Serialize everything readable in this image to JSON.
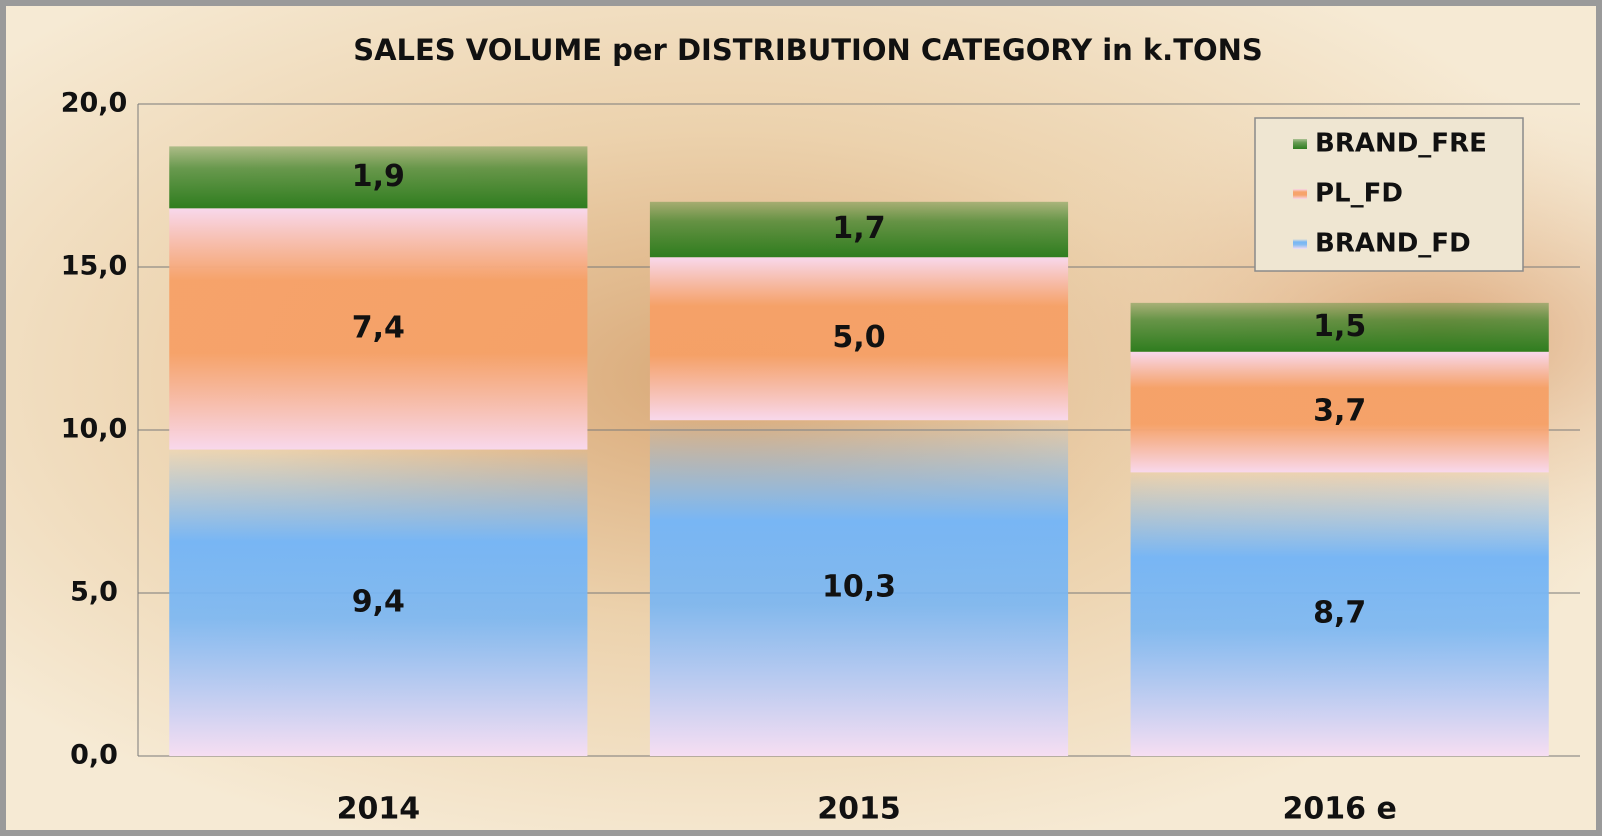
{
  "chart_data": {
    "type": "stacked_bar",
    "title": "SALES VOLUME per DISTRIBUTION CATEGORY in k.TONS",
    "categories": [
      "2014",
      "2015",
      "2016 e"
    ],
    "series": [
      {
        "name": "BRAND_FD",
        "color": "#78b6f4",
        "values": [
          9.4,
          10.3,
          8.7
        ],
        "value_labels": [
          "9,4",
          "10,3",
          "8,7"
        ]
      },
      {
        "name": "PL_FD",
        "color": "#f6a066",
        "values": [
          7.4,
          5.0,
          3.7
        ],
        "value_labels": [
          "7,4",
          "5,0",
          "3,7"
        ]
      },
      {
        "name": "BRAND_FRE",
        "color": "#2f7d1f",
        "values": [
          1.9,
          1.7,
          1.5
        ],
        "value_labels": [
          "1,9",
          "1,7",
          "1,5"
        ]
      }
    ],
    "ylim": [
      0,
      20
    ],
    "yticks": [
      {
        "value": 0,
        "label": "0,0"
      },
      {
        "value": 5,
        "label": "5,0"
      },
      {
        "value": 10,
        "label": "10,0"
      },
      {
        "value": 15,
        "label": "15,0"
      },
      {
        "value": 20,
        "label": "20,0"
      }
    ],
    "grid": true,
    "legend": "top-right"
  }
}
